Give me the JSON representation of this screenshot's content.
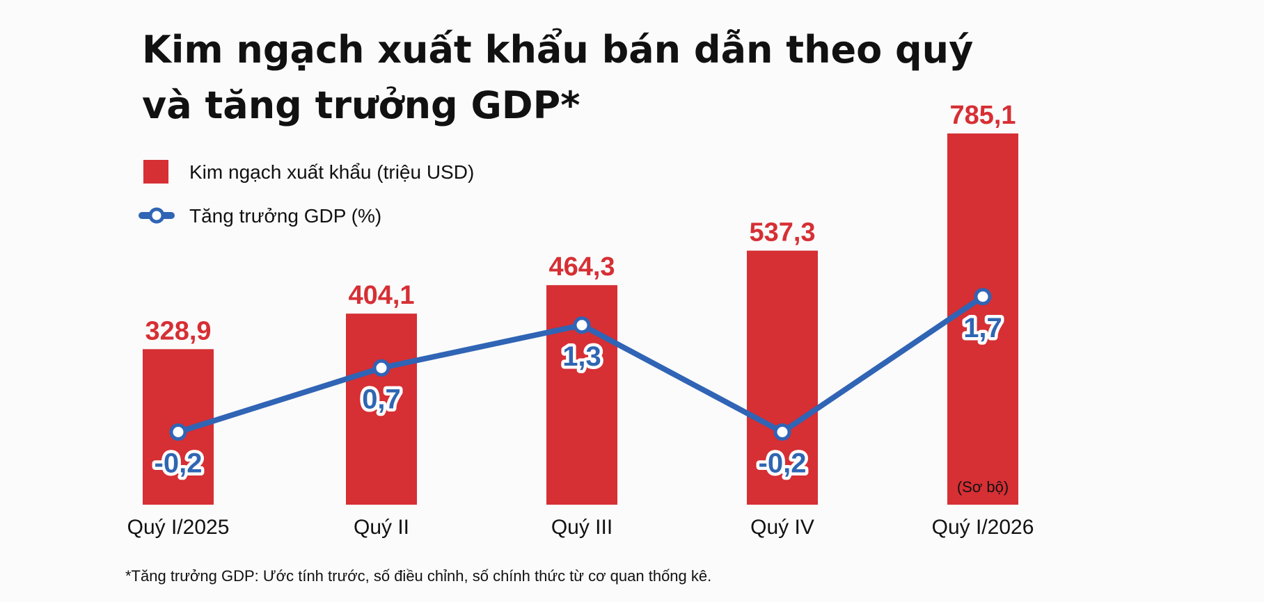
{
  "colors": {
    "bar": "#d62f34",
    "line": "#3064b5",
    "bar_label": "#d62f34",
    "gdp_label": "#2f66b3"
  },
  "chart_data": {
    "type": "bar",
    "title_lines": [
      "Kim ngạch xuất khẩu bán dẫn theo quý",
      "và tăng trưởng GDP*"
    ],
    "categories": [
      "Quý I/2025",
      "Quý II",
      "Quý III",
      "Quý IV",
      "Quý I/2026"
    ],
    "series": [
      {
        "name": "Kim ngạch xuất khẩu (triệu USD)",
        "type": "bar",
        "values": [
          328.9,
          404.1,
          464.3,
          537.3,
          785.1
        ],
        "labels": [
          "328,9",
          "404,1",
          "464,3",
          "537,3",
          "785,1"
        ]
      },
      {
        "name": "Tăng trưởng GDP (%)",
        "type": "line",
        "values": [
          -0.2,
          0.7,
          1.3,
          -0.2,
          1.7
        ],
        "labels": [
          "-0,2",
          "0,7",
          "1,3",
          "-0,2",
          "1,7"
        ]
      }
    ],
    "bar_note": "(Sơ bộ)",
    "footnote": "*Tăng trưởng GDP: Ước tính trước, số điều chỉnh, số chính thức từ cơ quan thống kê.",
    "legend_position": "top-left",
    "grid": false
  }
}
